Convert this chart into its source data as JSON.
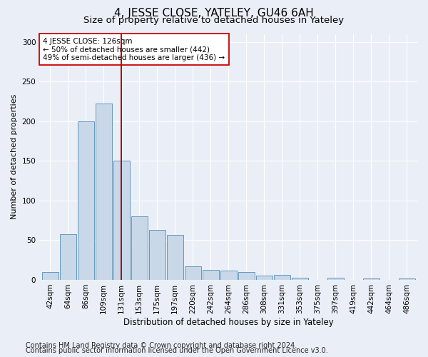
{
  "title": "4, JESSE CLOSE, YATELEY, GU46 6AH",
  "subtitle": "Size of property relative to detached houses in Yateley",
  "xlabel": "Distribution of detached houses by size in Yateley",
  "ylabel": "Number of detached properties",
  "categories": [
    "42sqm",
    "64sqm",
    "86sqm",
    "109sqm",
    "131sqm",
    "153sqm",
    "175sqm",
    "197sqm",
    "220sqm",
    "242sqm",
    "264sqm",
    "286sqm",
    "308sqm",
    "331sqm",
    "353sqm",
    "375sqm",
    "397sqm",
    "419sqm",
    "442sqm",
    "464sqm",
    "486sqm"
  ],
  "values": [
    10,
    58,
    200,
    222,
    150,
    80,
    63,
    57,
    17,
    13,
    12,
    10,
    5,
    6,
    3,
    0,
    3,
    0,
    2,
    0,
    2
  ],
  "bar_color": "#c8d8e8",
  "bar_edge_color": "#6699bb",
  "vline_x_index": 4,
  "vline_color": "#aa0000",
  "annotation_text": "4 JESSE CLOSE: 126sqm\n← 50% of detached houses are smaller (442)\n49% of semi-detached houses are larger (436) →",
  "annotation_box_color": "#ffffff",
  "annotation_box_edge": "#cc0000",
  "ylim": [
    0,
    310
  ],
  "yticks": [
    0,
    50,
    100,
    150,
    200,
    250,
    300
  ],
  "bg_color": "#eaeff7",
  "axes_bg": "#eaeff7",
  "grid_color": "#ffffff",
  "footer1": "Contains HM Land Registry data © Crown copyright and database right 2024.",
  "footer2": "Contains public sector information licensed under the Open Government Licence v3.0.",
  "title_fontsize": 11,
  "subtitle_fontsize": 9.5,
  "label_fontsize": 8.5,
  "tick_fontsize": 7.5,
  "ylabel_fontsize": 8,
  "annotation_fontsize": 7.5,
  "footer_fontsize": 7
}
